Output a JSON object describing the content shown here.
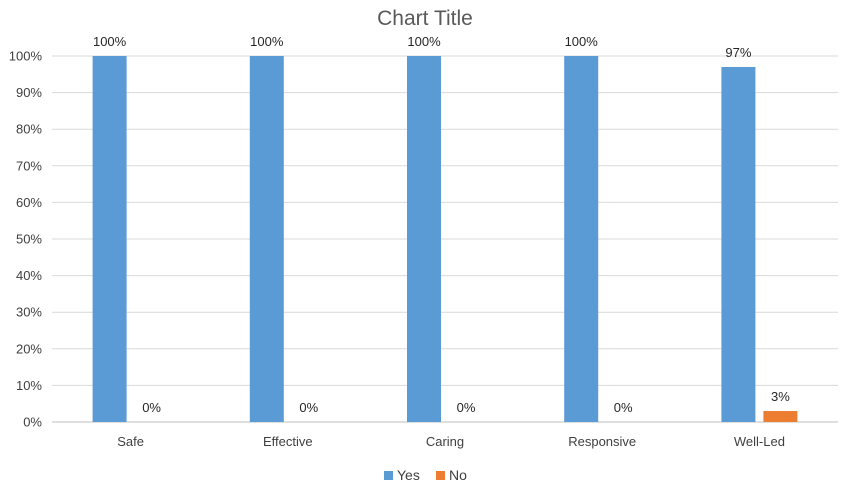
{
  "chart_data": {
    "type": "bar",
    "title": "Chart Title",
    "xlabel": "",
    "ylabel": "",
    "categories": [
      "Safe",
      "Effective",
      "Caring",
      "Responsive",
      "Well-Led"
    ],
    "series": [
      {
        "name": "Yes",
        "color": "#5b9bd5",
        "values": [
          100,
          100,
          100,
          100,
          97
        ],
        "labels": [
          "100%",
          "100%",
          "100%",
          "100%",
          "97%"
        ]
      },
      {
        "name": "No",
        "color": "#ed7d31",
        "values": [
          0,
          0,
          0,
          0,
          3
        ],
        "labels": [
          "0%",
          "0%",
          "0%",
          "0%",
          "3%"
        ]
      }
    ],
    "ylim": [
      0,
      100
    ],
    "yticks": [
      0,
      10,
      20,
      30,
      40,
      50,
      60,
      70,
      80,
      90,
      100
    ],
    "ytick_labels": [
      "0%",
      "10%",
      "20%",
      "30%",
      "40%",
      "50%",
      "60%",
      "70%",
      "80%",
      "90%",
      "100%"
    ],
    "grid": true,
    "legend_position": "bottom-center"
  }
}
